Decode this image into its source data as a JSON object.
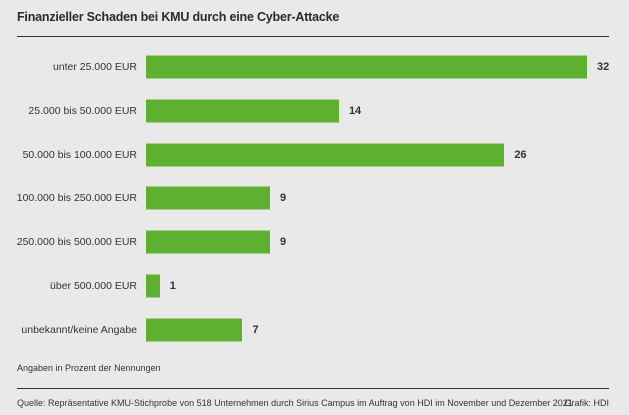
{
  "chart_data": {
    "type": "bar",
    "orientation": "horizontal",
    "title": "Finanzieller Schaden bei KMU durch eine Cyber-Attacke",
    "categories": [
      "unter 25.000 EUR",
      "25.000 bis 50.000 EUR",
      "50.000 bis 100.000 EUR",
      "100.000 bis 250.000 EUR",
      "250.000 bis 500.000 EUR",
      "über 500.000 EUR",
      "unbekannt/keine Angabe"
    ],
    "values": [
      32,
      14,
      26,
      9,
      9,
      1,
      7
    ],
    "xlim": [
      0,
      32
    ],
    "grid": false,
    "bar_color": "#5eb130",
    "note": "Angaben in Prozent der Nennungen"
  },
  "footer": {
    "source": "Quelle: Repräsentative KMU-Stichprobe von 518 Unternehmen durch Sirius Campus im Auftrag von HDI im November und Dezember 2021",
    "credit": "Grafik: HDI"
  }
}
